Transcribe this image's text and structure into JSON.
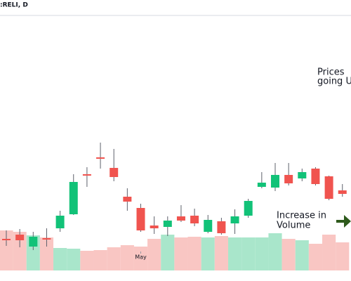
{
  "chart_data": {
    "type": "candlestick",
    "title": ":RELI, D",
    "categories": [
      null,
      null,
      null,
      null,
      null,
      null,
      null,
      null,
      null,
      null,
      "May",
      null,
      null,
      null,
      null,
      null,
      null,
      null,
      null,
      null,
      null,
      null,
      null,
      null,
      null,
      null
    ],
    "open": [
      6.0,
      6.6,
      4.9,
      6.1,
      7.5,
      9.5,
      15.2,
      17.6,
      16.1,
      12.0,
      10.4,
      7.9,
      7.7,
      9.2,
      9.3,
      7.0,
      8.5,
      8.2,
      9.3,
      13.4,
      13.3,
      15.1,
      14.6,
      16.0,
      14.9,
      12.9
    ],
    "high": [
      7.2,
      7.4,
      7.0,
      7.5,
      10.0,
      15.2,
      16.2,
      19.7,
      18.8,
      13.2,
      11.0,
      9.2,
      9.2,
      10.8,
      10.3,
      9.4,
      9.0,
      10.2,
      11.7,
      15.5,
      16.8,
      16.8,
      16.0,
      16.2,
      15.0,
      13.8
    ],
    "low": [
      5.0,
      4.8,
      4.4,
      4.9,
      7.0,
      9.4,
      13.4,
      16.0,
      14.2,
      10.0,
      7.0,
      6.7,
      6.4,
      8.4,
      7.8,
      6.8,
      6.6,
      6.7,
      9.0,
      13.2,
      12.8,
      13.6,
      14.2,
      13.6,
      11.5,
      12.0
    ],
    "close": [
      5.8,
      5.8,
      6.3,
      5.9,
      9.3,
      14.1,
      15.0,
      17.4,
      14.8,
      11.3,
      7.2,
      7.5,
      8.6,
      8.6,
      8.2,
      8.7,
      6.8,
      9.2,
      11.4,
      14.0,
      15.1,
      13.9,
      15.5,
      13.8,
      11.7,
      12.4
    ],
    "volume": [
      57,
      55,
      50,
      47,
      32,
      31,
      28,
      29,
      33,
      36,
      34,
      45,
      51,
      47,
      48,
      47,
      49,
      47,
      47,
      47,
      53,
      45,
      43,
      38,
      51,
      40
    ],
    "up_color": "#12c278",
    "down_color": "#f0544f",
    "up_volume_color": "#a9e6cb",
    "down_volume_color": "#f9c6c3",
    "ylim": [
      0,
      40
    ],
    "volume_ylim": [
      0,
      385
    ],
    "annotations": [
      "Prices",
      "going U",
      "Increase in",
      "Volume"
    ]
  }
}
